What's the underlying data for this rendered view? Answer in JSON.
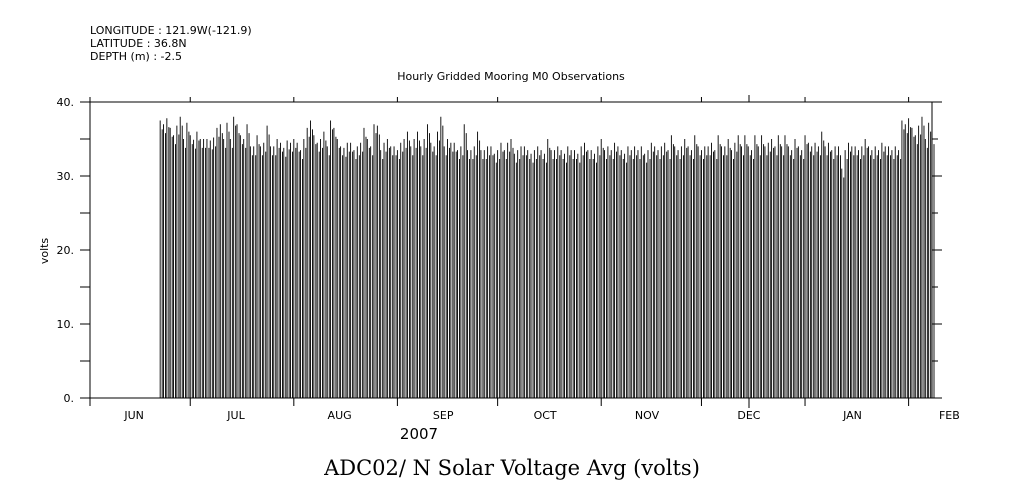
{
  "header": {
    "longitude": "LONGITUDE : 121.9W(-121.9)",
    "latitude": "LATITUDE : 36.8N",
    "depth": "DEPTH (m) : -2.5"
  },
  "chart_data": {
    "type": "bar",
    "title": "Hourly Gridded Mooring M0 Observations",
    "ylabel": "volts",
    "xlabel": "2007",
    "footer_title": "ADC02/ N Solar Voltage Avg (volts)",
    "ylim": [
      0,
      40
    ],
    "y_ticks": [
      {
        "value": 0,
        "label": "0."
      },
      {
        "value": 10,
        "label": "10."
      },
      {
        "value": 20,
        "label": "20."
      },
      {
        "value": 30,
        "label": "30."
      },
      {
        "value": 40,
        "label": "40."
      }
    ],
    "x_axis_days_range": [
      0,
      252
    ],
    "month_labels": [
      {
        "label": "JUN",
        "day": 15
      },
      {
        "label": "JUL",
        "day": 45.5
      },
      {
        "label": "AUG",
        "day": 76.5
      },
      {
        "label": "SEP",
        "day": 107.5
      },
      {
        "label": "OCT",
        "day": 138
      },
      {
        "label": "NOV",
        "day": 168.5
      },
      {
        "label": "DEC",
        "day": 199
      },
      {
        "label": "JAN",
        "day": 230
      },
      {
        "label": "FEB",
        "day": 259
      }
    ],
    "month_boundaries_days": [
      0,
      30,
      61,
      92,
      122,
      153,
      183,
      214,
      245
    ],
    "data_start_day": 21,
    "data_end_day": 253,
    "daily_peak_volts": [
      37.5,
      37.0,
      37.8,
      36.5,
      35.5,
      36.8,
      38.0,
      35.0,
      37.2,
      35.5,
      34.9,
      36.0,
      35.0,
      35.0,
      35.0,
      34.8,
      35.2,
      36.5,
      37.0,
      35.0,
      37.2,
      35.0,
      38.0,
      37.0,
      35.5,
      35.0,
      37.0,
      34.0,
      34.0,
      35.5,
      34.0,
      34.5,
      36.8,
      34.0,
      34.0,
      35.0,
      34.5,
      33.8,
      34.8,
      34.5,
      35.0,
      34.5,
      33.5,
      35.0,
      36.5,
      37.5,
      35.5,
      34.5,
      35.0,
      36.0,
      34.0,
      37.5,
      36.5,
      35.0,
      34.0,
      33.8,
      34.5,
      34.5,
      33.5,
      34.0,
      34.5,
      36.5,
      35.0,
      34.0,
      37.0,
      36.8,
      33.5,
      34.5,
      35.0,
      34.0,
      34.0,
      33.5,
      34.5,
      35.0,
      36.0,
      34.0,
      35.0,
      36.0,
      34.0,
      35.0,
      37.0,
      34.5,
      34.0,
      36.0,
      38.0,
      34.0,
      35.0,
      34.5,
      34.5,
      33.5,
      34.0,
      37.0,
      33.5,
      33.5,
      34.0,
      36.0,
      33.5,
      33.5,
      34.0,
      34.0,
      33.0,
      33.5,
      34.5,
      33.5,
      34.5,
      35.0,
      33.0,
      33.5,
      34.0,
      34.0,
      33.5,
      33.0,
      33.5,
      34.0,
      33.5,
      33.0,
      35.0,
      33.5,
      33.5,
      34.0,
      33.5,
      33.0,
      34.0,
      33.5,
      33.5,
      33.0,
      34.0,
      34.5,
      33.5,
      33.5,
      33.0,
      34.0,
      35.0,
      33.5,
      34.0,
      33.5,
      34.5,
      34.0,
      33.5,
      33.0,
      34.0,
      33.5,
      34.0,
      33.5,
      34.0,
      33.0,
      33.5,
      34.5,
      34.0,
      33.5,
      34.0,
      34.5,
      33.5,
      35.5,
      34.0,
      33.5,
      34.0,
      35.0,
      34.0,
      33.5,
      35.5,
      34.0,
      33.5,
      34.0,
      34.0,
      34.5,
      33.5,
      35.5,
      34.0,
      34.0,
      35.0,
      33.5,
      34.5,
      35.5,
      34.0,
      35.5,
      34.0,
      33.5,
      35.5,
      34.0,
      35.5,
      34.0,
      34.5,
      35.0,
      34.0,
      35.5,
      34.0,
      35.5,
      34.0,
      33.5,
      35.0,
      34.0,
      33.5,
      35.5,
      34.5,
      34.0,
      34.5,
      34.0,
      36.0,
      34.0,
      34.5,
      33.5,
      34.0,
      34.0,
      31.0,
      33.5,
      34.5,
      34.0,
      34.0,
      33.5,
      34.0,
      35.0,
      34.0,
      33.5,
      34.0,
      33.5,
      34.5,
      34.0,
      34.0,
      33.5,
      34.0,
      33.5
    ]
  }
}
